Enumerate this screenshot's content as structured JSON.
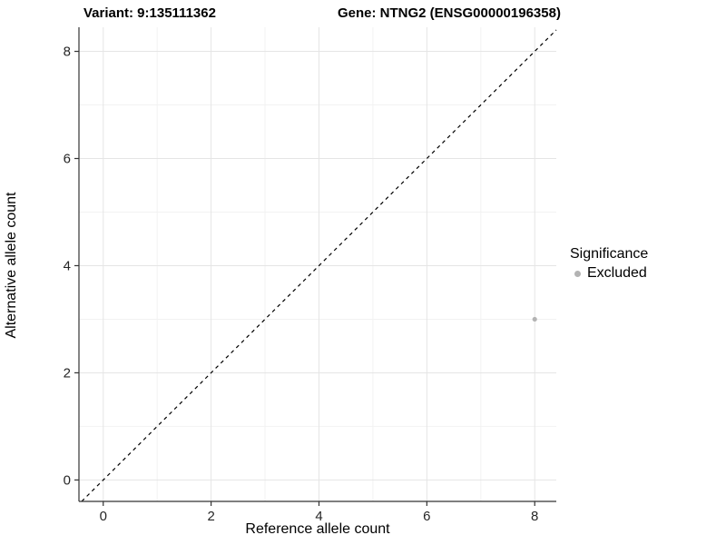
{
  "colors": {
    "background": "#ffffff",
    "grid_major": "#e5e5e5",
    "grid_minor": "#f2f2f2",
    "axis_line": "#333333",
    "tick_mark": "#333333",
    "tick_label": "#262626",
    "identity_line": "#000000",
    "excluded_point": "#b3b3b3"
  },
  "chart_data": {
    "type": "scatter",
    "title_left": "Variant: 9:135111362",
    "title_right": "Gene: NTNG2 (ENSG00000196358)",
    "xlabel": "Reference allele count",
    "ylabel": "Alternative allele count",
    "xlim": [
      -0.45,
      8.4
    ],
    "ylim": [
      -0.4,
      8.45
    ],
    "x_major_ticks": [
      0,
      2,
      4,
      6,
      8
    ],
    "y_major_ticks": [
      0,
      2,
      4,
      6,
      8
    ],
    "x_minor_ticks": [
      1,
      3,
      5,
      7
    ],
    "y_minor_ticks": [
      1,
      3,
      5,
      7
    ],
    "grid": true,
    "identity_line": {
      "style": "dashed",
      "slope": 1,
      "intercept": 0
    },
    "series": [
      {
        "name": "Excluded",
        "color": "#b3b3b3",
        "points": [
          {
            "x": 8,
            "y": 3
          }
        ]
      }
    ],
    "legend": {
      "title": "Significance",
      "position": "right",
      "entries": [
        {
          "label": "Excluded",
          "color": "#b3b3b3"
        }
      ]
    }
  }
}
